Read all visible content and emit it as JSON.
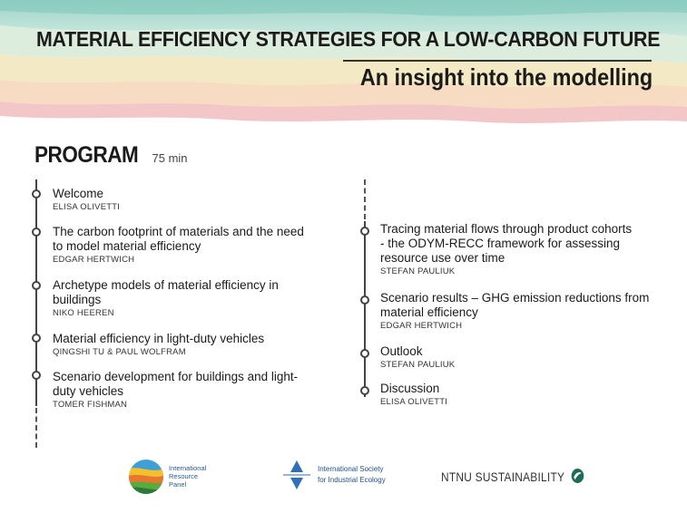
{
  "header": {
    "title": "MATERIAL EFFICIENCY STRATEGIES FOR A LOW-CARBON FUTURE",
    "subtitle": "An insight into the modelling"
  },
  "program": {
    "title": "PROGRAM",
    "duration": "75 min",
    "left": [
      {
        "title": "Welcome",
        "speaker": "ELISA OLIVETTI"
      },
      {
        "title": "The carbon footprint of materials and the need to model material efficiency",
        "speaker": "EDGAR HERTWICH"
      },
      {
        "title": "Archetype models of material efficiency in buildings",
        "speaker": "NIKO HEEREN"
      },
      {
        "title": "Material efficiency in light-duty vehicles",
        "speaker": "QINGSHI TU & PAUL WOLFRAM"
      },
      {
        "title": "Scenario development for buildings and light-duty vehicles",
        "speaker": "TOMER FISHMAN"
      }
    ],
    "right": [
      {
        "title": "Tracing material flows through product cohorts - the ODYM-RECC framework for assessing resource use over time",
        "speaker": "STEFAN PAULIUK"
      },
      {
        "title": "Scenario results – GHG emission reductions from material efficiency",
        "speaker": "EDGAR HERTWICH"
      },
      {
        "title": "Outlook",
        "speaker": "STEFAN PAULIUK"
      },
      {
        "title": "Discussion",
        "speaker": "ELISA OLIVETTI"
      }
    ]
  },
  "logos": {
    "irp": "International Resource Panel",
    "irp_lines": [
      "International",
      "Resource",
      "Panel"
    ],
    "isie_lines": [
      "International Society",
      "for Industrial Ecology"
    ],
    "ntnu": "NTNU SUSTAINABILITY"
  },
  "colors": {
    "wave_teal": "#a9d8cf",
    "wave_green": "#c9e2b6",
    "wave_yellow": "#f1e1ad",
    "wave_orange": "#f3cfae",
    "wave_pink": "#efb3b4",
    "text_dark": "#1b1b1b",
    "logo_blue": "#1f4f8a"
  }
}
